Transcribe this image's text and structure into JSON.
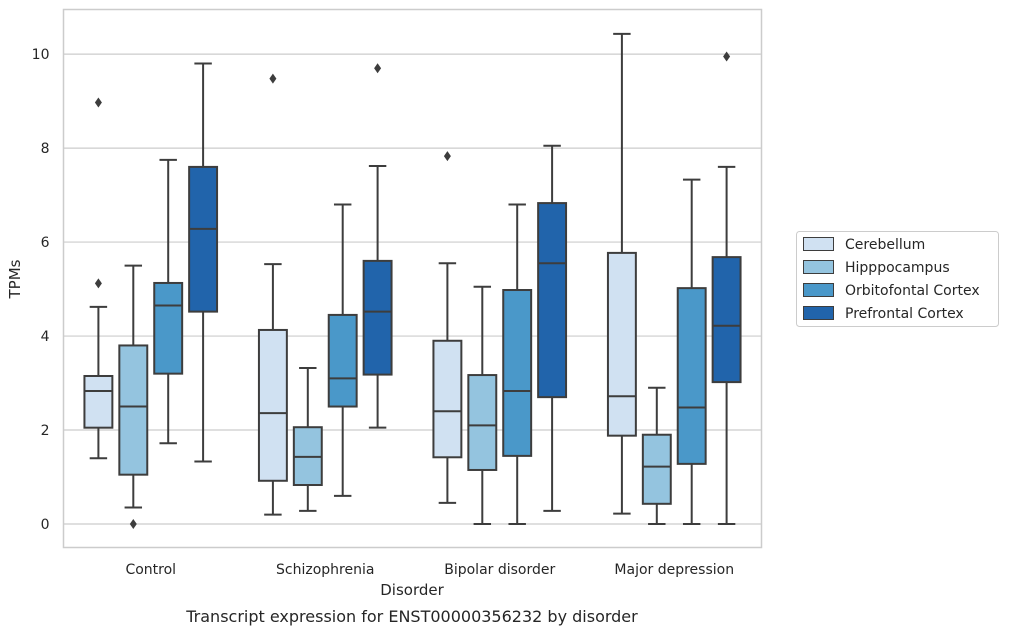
{
  "chart_data": {
    "type": "box",
    "caption": "Transcript expression for ENST00000356232 by disorder",
    "xlabel": "Disorder",
    "ylabel": "TPMs",
    "ylim": [
      -0.5,
      10.95
    ],
    "yticks": [
      0,
      2,
      4,
      6,
      8,
      10
    ],
    "grid": true,
    "legend_position": "right",
    "categories": [
      "Control",
      "Schizophrenia",
      "Bipolar disorder",
      "Major depression"
    ],
    "series": [
      {
        "name": "Cerebellum",
        "color": "#d0e1f2",
        "boxes": [
          {
            "min": 1.4,
            "q1": 2.05,
            "median": 2.83,
            "q3": 3.15,
            "max": 4.62,
            "outliers": [
              5.12,
              8.97
            ]
          },
          {
            "min": 0.2,
            "q1": 0.92,
            "median": 2.36,
            "q3": 4.13,
            "max": 5.53,
            "outliers": [
              9.48
            ]
          },
          {
            "min": 0.45,
            "q1": 1.42,
            "median": 2.4,
            "q3": 3.9,
            "max": 5.55,
            "outliers": [
              7.83
            ]
          },
          {
            "min": 0.22,
            "q1": 1.88,
            "median": 2.72,
            "q3": 5.77,
            "max": 10.43,
            "outliers": []
          }
        ]
      },
      {
        "name": "Hipppocampus",
        "color": "#94c4df",
        "boxes": [
          {
            "min": 0.35,
            "q1": 1.05,
            "median": 2.5,
            "q3": 3.8,
            "max": 5.5,
            "outliers": [
              0.0
            ]
          },
          {
            "min": 0.28,
            "q1": 0.83,
            "median": 1.43,
            "q3": 2.06,
            "max": 3.32,
            "outliers": []
          },
          {
            "min": 0.0,
            "q1": 1.15,
            "median": 2.1,
            "q3": 3.17,
            "max": 5.05,
            "outliers": []
          },
          {
            "min": 0.0,
            "q1": 0.43,
            "median": 1.22,
            "q3": 1.9,
            "max": 2.9,
            "outliers": []
          }
        ]
      },
      {
        "name": "Orbitofontal Cortex",
        "color": "#4a98c9",
        "boxes": [
          {
            "min": 1.72,
            "q1": 3.2,
            "median": 4.65,
            "q3": 5.13,
            "max": 7.75,
            "outliers": []
          },
          {
            "min": 0.6,
            "q1": 2.5,
            "median": 3.1,
            "q3": 4.45,
            "max": 6.8,
            "outliers": []
          },
          {
            "min": 0.0,
            "q1": 1.45,
            "median": 2.83,
            "q3": 4.98,
            "max": 6.8,
            "outliers": []
          },
          {
            "min": 0.0,
            "q1": 1.28,
            "median": 2.48,
            "q3": 5.02,
            "max": 7.33,
            "outliers": []
          }
        ]
      },
      {
        "name": "Prefrontal Cortex",
        "color": "#2164ab",
        "boxes": [
          {
            "min": 1.33,
            "q1": 4.52,
            "median": 6.28,
            "q3": 7.6,
            "max": 9.8,
            "outliers": []
          },
          {
            "min": 2.05,
            "q1": 3.18,
            "median": 4.52,
            "q3": 5.6,
            "max": 7.62,
            "outliers": [
              9.7
            ]
          },
          {
            "min": 0.28,
            "q1": 2.7,
            "median": 5.55,
            "q3": 6.83,
            "max": 8.05,
            "outliers": []
          },
          {
            "min": 0.0,
            "q1": 3.02,
            "median": 4.22,
            "q3": 5.68,
            "max": 7.6,
            "outliers": [
              9.95
            ]
          }
        ]
      }
    ]
  }
}
